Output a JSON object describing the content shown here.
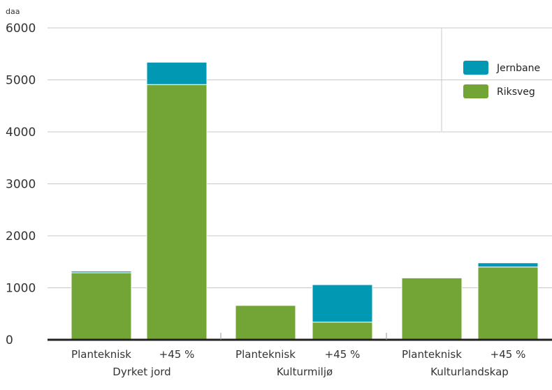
{
  "chart_data": {
    "type": "bar",
    "stacked": true,
    "y_unit": "daa",
    "ylim": [
      0,
      6000
    ],
    "y_ticks": [
      "0",
      "1000",
      "2000",
      "3000",
      "4000",
      "5000",
      "6000"
    ],
    "grid": true,
    "legend_position": "top-right",
    "groups": [
      {
        "label": "Dyrket jord",
        "categories": [
          "Planteknisk",
          "+45 %"
        ]
      },
      {
        "label": "Kulturmiljø",
        "categories": [
          "Planteknisk",
          "+45 %"
        ]
      },
      {
        "label": "Kulturlandskap",
        "categories": [
          "Planteknisk",
          "+45 %"
        ]
      }
    ],
    "series": [
      {
        "name": "Riksveg",
        "color": "#72a535",
        "values": [
          1290,
          4910,
          660,
          340,
          1190,
          1400
        ]
      },
      {
        "name": "Jernbane",
        "color": "#0098b3",
        "values": [
          30,
          430,
          0,
          720,
          0,
          80
        ]
      }
    ],
    "legend": [
      {
        "name": "Jernbane",
        "color": "#0098b3"
      },
      {
        "name": "Riksveg",
        "color": "#72a535"
      }
    ]
  }
}
